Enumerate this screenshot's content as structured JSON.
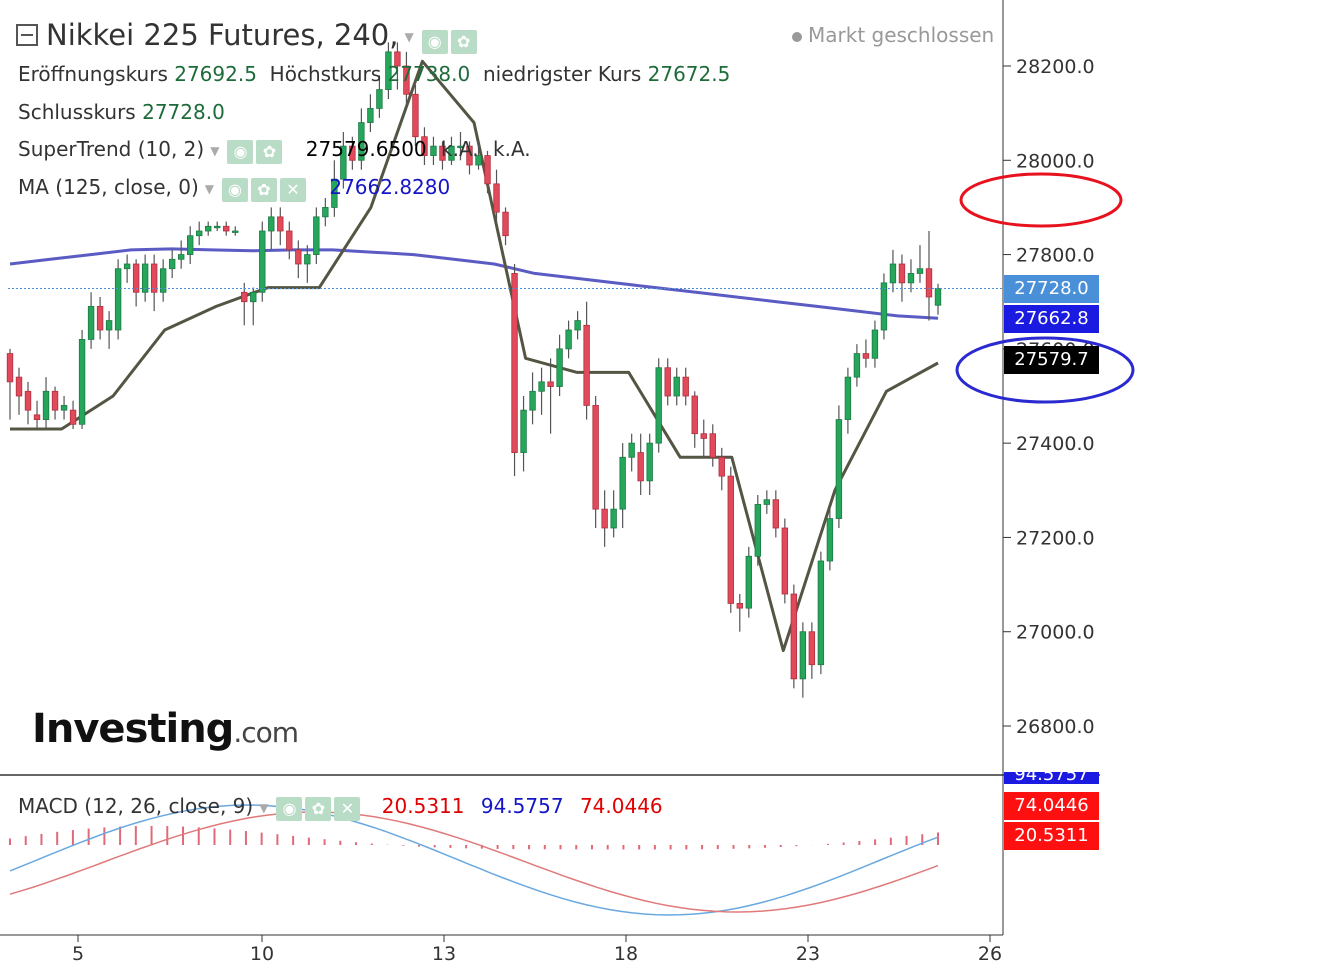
{
  "header": {
    "symbol": "Nikkei 225 Futures, 240,",
    "market_status": "Markt geschlossen",
    "ohlc": {
      "open_label": "Eröffnungskurs",
      "open": "27692.5",
      "high_label": "Höchstkurs",
      "high": "27738.0",
      "low_label": "niedrigster Kurs",
      "low": "27672.5",
      "close_label": "Schlusskurs",
      "close": "27728.0"
    },
    "supertrend": {
      "label": "SuperTrend (10, 2)",
      "value": "27579.6500",
      "na1": "k.A.",
      "na2": "k.A."
    },
    "ma": {
      "label": "MA (125, close, 0)",
      "value": "27662.8280"
    },
    "macd": {
      "label": "MACD (12, 26, close, 9)",
      "hist": "20.5311",
      "macd": "94.5757",
      "signal": "74.0446"
    }
  },
  "logo": {
    "brand": "Investing",
    "suffix": ".com"
  },
  "badges": {
    "close": "27728.0",
    "ma": "27662.8",
    "supertrend": "27579.7",
    "macd_top": "94.5757",
    "signal": "74.0446",
    "hist": "20.5311"
  },
  "colors": {
    "up": "#26a65b",
    "down": "#e04a5a",
    "wick": "#555555",
    "ma": "#5b5bc4",
    "supertrend": "#555544",
    "macd_line": "#6aa8e0",
    "signal_line": "#e07a7a",
    "hist": "#e06a7a",
    "badge_close": "#4a90d9",
    "badge_ma": "#1a1ae0",
    "badge_st": "#000000",
    "badge_red": "#ff1010",
    "annotation_red": "#e8111e",
    "annotation_blue": "#2a2ad0"
  },
  "chart_data": {
    "type": "candlestick",
    "y_axis": {
      "ticks": [
        28200,
        28000,
        27800,
        27600,
        27400,
        27200,
        27000,
        26800
      ],
      "tick_labels": [
        "28200.0",
        "28000.0",
        "27800.0",
        "27600.0",
        "27400.0",
        "27200.0",
        "27000.0",
        "26800.0"
      ],
      "ylim": [
        26650,
        28300
      ]
    },
    "x_axis": {
      "ticks": [
        5,
        10,
        13,
        18,
        23,
        26
      ],
      "tick_labels": [
        "5",
        "10",
        "13",
        "18",
        "23",
        "26"
      ]
    },
    "candles": [
      {
        "o": 27590,
        "c": 27530,
        "h": 27600,
        "l": 27450
      },
      {
        "o": 27540,
        "c": 27500,
        "h": 27560,
        "l": 27460
      },
      {
        "o": 27510,
        "c": 27470,
        "h": 27530,
        "l": 27440
      },
      {
        "o": 27460,
        "c": 27450,
        "h": 27490,
        "l": 27430
      },
      {
        "o": 27450,
        "c": 27510,
        "h": 27540,
        "l": 27430
      },
      {
        "o": 27510,
        "c": 27470,
        "h": 27520,
        "l": 27450
      },
      {
        "o": 27470,
        "c": 27480,
        "h": 27500,
        "l": 27450
      },
      {
        "o": 27470,
        "c": 27440,
        "h": 27490,
        "l": 27430
      },
      {
        "o": 27440,
        "c": 27620,
        "h": 27640,
        "l": 27430
      },
      {
        "o": 27620,
        "c": 27690,
        "h": 27720,
        "l": 27600
      },
      {
        "o": 27690,
        "c": 27640,
        "h": 27710,
        "l": 27620
      },
      {
        "o": 27640,
        "c": 27660,
        "h": 27680,
        "l": 27600
      },
      {
        "o": 27640,
        "c": 27770,
        "h": 27790,
        "l": 27620
      },
      {
        "o": 27770,
        "c": 27780,
        "h": 27800,
        "l": 27740
      },
      {
        "o": 27780,
        "c": 27720,
        "h": 27790,
        "l": 27690
      },
      {
        "o": 27720,
        "c": 27780,
        "h": 27800,
        "l": 27700
      },
      {
        "o": 27780,
        "c": 27720,
        "h": 27800,
        "l": 27680
      },
      {
        "o": 27720,
        "c": 27770,
        "h": 27790,
        "l": 27700
      },
      {
        "o": 27770,
        "c": 27790,
        "h": 27810,
        "l": 27750
      },
      {
        "o": 27790,
        "c": 27800,
        "h": 27830,
        "l": 27770
      },
      {
        "o": 27800,
        "c": 27840,
        "h": 27860,
        "l": 27780
      },
      {
        "o": 27840,
        "c": 27850,
        "h": 27870,
        "l": 27820
      },
      {
        "o": 27850,
        "c": 27860,
        "h": 27870,
        "l": 27840
      },
      {
        "o": 27860,
        "c": 27860,
        "h": 27870,
        "l": 27850
      },
      {
        "o": 27860,
        "c": 27850,
        "h": 27870,
        "l": 27840
      },
      {
        "o": 27850,
        "c": 27850,
        "h": 27860,
        "l": 27840
      },
      {
        "o": 27720,
        "c": 27700,
        "h": 27740,
        "l": 27650
      },
      {
        "o": 27700,
        "c": 27720,
        "h": 27730,
        "l": 27650
      },
      {
        "o": 27720,
        "c": 27850,
        "h": 27870,
        "l": 27700
      },
      {
        "o": 27850,
        "c": 27880,
        "h": 27900,
        "l": 27810
      },
      {
        "o": 27880,
        "c": 27850,
        "h": 27900,
        "l": 27820
      },
      {
        "o": 27850,
        "c": 27810,
        "h": 27870,
        "l": 27790
      },
      {
        "o": 27810,
        "c": 27780,
        "h": 27830,
        "l": 27750
      },
      {
        "o": 27780,
        "c": 27800,
        "h": 27820,
        "l": 27740
      },
      {
        "o": 27800,
        "c": 27880,
        "h": 27900,
        "l": 27780
      },
      {
        "o": 27880,
        "c": 27900,
        "h": 27920,
        "l": 27860
      },
      {
        "o": 27900,
        "c": 27960,
        "h": 28000,
        "l": 27880
      },
      {
        "o": 27960,
        "c": 28030,
        "h": 28060,
        "l": 27940
      },
      {
        "o": 28030,
        "c": 28000,
        "h": 28050,
        "l": 27980
      },
      {
        "o": 28000,
        "c": 28080,
        "h": 28110,
        "l": 27980
      },
      {
        "o": 28080,
        "c": 28110,
        "h": 28140,
        "l": 28060
      },
      {
        "o": 28110,
        "c": 28150,
        "h": 28180,
        "l": 28090
      },
      {
        "o": 28150,
        "c": 28230,
        "h": 28250,
        "l": 28130
      },
      {
        "o": 28230,
        "c": 28200,
        "h": 28250,
        "l": 28150
      },
      {
        "o": 28200,
        "c": 28140,
        "h": 28230,
        "l": 28120
      },
      {
        "o": 28140,
        "c": 28050,
        "h": 28160,
        "l": 28030
      },
      {
        "o": 28050,
        "c": 28010,
        "h": 28070,
        "l": 27990
      },
      {
        "o": 28010,
        "c": 28030,
        "h": 28050,
        "l": 27990
      },
      {
        "o": 28030,
        "c": 28000,
        "h": 28040,
        "l": 27980
      },
      {
        "o": 28000,
        "c": 28030,
        "h": 28050,
        "l": 27990
      },
      {
        "o": 28030,
        "c": 28030,
        "h": 28060,
        "l": 28000
      },
      {
        "o": 28030,
        "c": 27990,
        "h": 28040,
        "l": 27970
      },
      {
        "o": 27990,
        "c": 28010,
        "h": 28040,
        "l": 27980
      },
      {
        "o": 28010,
        "c": 27950,
        "h": 28020,
        "l": 27930
      },
      {
        "o": 27950,
        "c": 27890,
        "h": 27980,
        "l": 27870
      },
      {
        "o": 27890,
        "c": 27840,
        "h": 27900,
        "l": 27820
      },
      {
        "o": 27760,
        "c": 27380,
        "h": 27780,
        "l": 27330
      },
      {
        "o": 27380,
        "c": 27470,
        "h": 27500,
        "l": 27340
      },
      {
        "o": 27470,
        "c": 27510,
        "h": 27550,
        "l": 27440
      },
      {
        "o": 27510,
        "c": 27530,
        "h": 27560,
        "l": 27460
      },
      {
        "o": 27530,
        "c": 27520,
        "h": 27580,
        "l": 27420
      },
      {
        "o": 27520,
        "c": 27600,
        "h": 27630,
        "l": 27500
      },
      {
        "o": 27600,
        "c": 27640,
        "h": 27660,
        "l": 27580
      },
      {
        "o": 27640,
        "c": 27660,
        "h": 27680,
        "l": 27620
      },
      {
        "o": 27650,
        "c": 27480,
        "h": 27700,
        "l": 27450
      },
      {
        "o": 27480,
        "c": 27260,
        "h": 27500,
        "l": 27220
      },
      {
        "o": 27260,
        "c": 27220,
        "h": 27300,
        "l": 27180
      },
      {
        "o": 27220,
        "c": 27260,
        "h": 27300,
        "l": 27200
      },
      {
        "o": 27260,
        "c": 27370,
        "h": 27400,
        "l": 27220
      },
      {
        "o": 27370,
        "c": 27400,
        "h": 27420,
        "l": 27340
      },
      {
        "o": 27380,
        "c": 27320,
        "h": 27420,
        "l": 27290
      },
      {
        "o": 27320,
        "c": 27400,
        "h": 27420,
        "l": 27290
      },
      {
        "o": 27400,
        "c": 27560,
        "h": 27580,
        "l": 27380
      },
      {
        "o": 27560,
        "c": 27500,
        "h": 27580,
        "l": 27480
      },
      {
        "o": 27500,
        "c": 27540,
        "h": 27560,
        "l": 27480
      },
      {
        "o": 27540,
        "c": 27500,
        "h": 27560,
        "l": 27480
      },
      {
        "o": 27500,
        "c": 27420,
        "h": 27510,
        "l": 27390
      },
      {
        "o": 27420,
        "c": 27410,
        "h": 27450,
        "l": 27370
      },
      {
        "o": 27420,
        "c": 27370,
        "h": 27440,
        "l": 27350
      },
      {
        "o": 27370,
        "c": 27330,
        "h": 27390,
        "l": 27300
      },
      {
        "o": 27330,
        "c": 27060,
        "h": 27350,
        "l": 27040
      },
      {
        "o": 27060,
        "c": 27050,
        "h": 27080,
        "l": 27000
      },
      {
        "o": 27050,
        "c": 27160,
        "h": 27180,
        "l": 27030
      },
      {
        "o": 27160,
        "c": 27270,
        "h": 27290,
        "l": 27140
      },
      {
        "o": 27270,
        "c": 27280,
        "h": 27300,
        "l": 27250
      },
      {
        "o": 27280,
        "c": 27220,
        "h": 27300,
        "l": 27200
      },
      {
        "o": 27220,
        "c": 27080,
        "h": 27240,
        "l": 27060
      },
      {
        "o": 27080,
        "c": 26900,
        "h": 27100,
        "l": 26880
      },
      {
        "o": 26900,
        "c": 27000,
        "h": 27020,
        "l": 26860
      },
      {
        "o": 27000,
        "c": 26930,
        "h": 27020,
        "l": 26900
      },
      {
        "o": 26930,
        "c": 27150,
        "h": 27170,
        "l": 26910
      },
      {
        "o": 27150,
        "c": 27240,
        "h": 27260,
        "l": 27130
      },
      {
        "o": 27240,
        "c": 27450,
        "h": 27480,
        "l": 27220
      },
      {
        "o": 27450,
        "c": 27540,
        "h": 27560,
        "l": 27420
      },
      {
        "o": 27540,
        "c": 27590,
        "h": 27610,
        "l": 27520
      },
      {
        "o": 27590,
        "c": 27580,
        "h": 27620,
        "l": 27560
      },
      {
        "o": 27580,
        "c": 27640,
        "h": 27660,
        "l": 27560
      },
      {
        "o": 27640,
        "c": 27740,
        "h": 27760,
        "l": 27620
      },
      {
        "o": 27740,
        "c": 27780,
        "h": 27810,
        "l": 27720
      },
      {
        "o": 27780,
        "c": 27740,
        "h": 27800,
        "l": 27700
      },
      {
        "o": 27740,
        "c": 27760,
        "h": 27790,
        "l": 27720
      },
      {
        "o": 27760,
        "c": 27770,
        "h": 27820,
        "l": 27740
      },
      {
        "o": 27770,
        "c": 27710,
        "h": 27850,
        "l": 27660
      },
      {
        "o": 27692.5,
        "c": 27728,
        "h": 27738,
        "l": 27672.5
      }
    ],
    "ma_125": [
      27780,
      27790,
      27800,
      27810,
      27812,
      27810,
      27808,
      27810,
      27810,
      27805,
      27800,
      27790,
      27780,
      27760,
      27750,
      27740,
      27730,
      27720,
      27710,
      27700,
      27690,
      27680,
      27670,
      27665
    ],
    "supertrend_pts": [
      27430,
      27430,
      27500,
      27640,
      27690,
      27730,
      27730,
      27900,
      28210,
      28080,
      27580,
      27550,
      27550,
      27370,
      27370,
      26960,
      27300,
      27510,
      27570
    ],
    "macd": {
      "macd_line_value": 94.5757,
      "signal_value": 74.0446,
      "histogram_value": 20.5311
    }
  }
}
